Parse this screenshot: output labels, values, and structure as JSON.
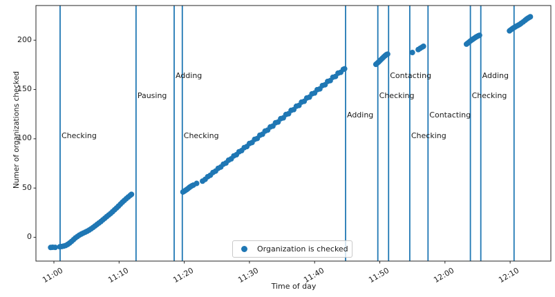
{
  "chart_data": {
    "type": "scatter",
    "title": "",
    "xlabel": "Time of day",
    "ylabel": "Numer of organizations checked",
    "point_color": "#1f77b4",
    "event_line_color": "#1f77b4",
    "grid": false,
    "x_axis": {
      "unit": "minutes after 11:00",
      "tick_minutes": [
        0,
        10,
        20,
        30,
        40,
        50,
        60,
        70
      ],
      "tick_labels": [
        "11:00",
        "11:10",
        "11:20",
        "11:30",
        "11:40",
        "11:50",
        "12:00",
        "12:10"
      ],
      "lim_minutes": [
        -2.8,
        76.3
      ]
    },
    "y_axis": {
      "ticks": [
        0,
        50,
        100,
        150,
        200
      ],
      "tick_labels": [
        "0",
        "50",
        "100",
        "150",
        "200"
      ],
      "lim": [
        -24,
        235
      ]
    },
    "legend": {
      "label": "Organization is checked",
      "position": "lower center"
    },
    "events": [
      {
        "minute": 0.95,
        "time": "11:01",
        "label": "Checking",
        "label_value": 103
      },
      {
        "minute": 12.6,
        "time": "11:13",
        "label": "Pausing",
        "label_value": 143.5
      },
      {
        "minute": 18.45,
        "time": "11:18",
        "label": "Adding",
        "label_value": 164
      },
      {
        "minute": 19.7,
        "time": "11:20",
        "label": "Checking",
        "label_value": 103
      },
      {
        "minute": 44.75,
        "time": "11:45",
        "label": "Adding",
        "label_value": 124
      },
      {
        "minute": 49.7,
        "time": "11:50",
        "label": "Checking",
        "label_value": 143.5
      },
      {
        "minute": 51.35,
        "time": "11:51",
        "label": "Contacting",
        "label_value": 164
      },
      {
        "minute": 54.6,
        "time": "11:55",
        "label": "Checking",
        "label_value": 103
      },
      {
        "minute": 57.4,
        "time": "11:57",
        "label": "Contacting",
        "label_value": 124
      },
      {
        "minute": 63.9,
        "time": "12:04",
        "label": "Checking",
        "label_value": 143.5
      },
      {
        "minute": 65.5,
        "time": "12:06",
        "label": "Adding",
        "label_value": 164
      },
      {
        "minute": 70.6,
        "time": "12:11",
        "label": "",
        "label_value": null
      }
    ],
    "series": [
      {
        "name": "Organization is checked",
        "points": [
          [
            -0.5,
            -10.3
          ],
          [
            -0.2,
            -10.1
          ],
          [
            0.2,
            -10.2
          ],
          [
            0.9,
            -9.6
          ],
          [
            1.2,
            -9.3
          ],
          [
            1.5,
            -8.9
          ],
          [
            1.8,
            -8.3
          ],
          [
            2.1,
            -7.2
          ],
          [
            2.4,
            -5.8
          ],
          [
            2.7,
            -4.2
          ],
          [
            3.0,
            -2.4
          ],
          [
            3.3,
            -0.6
          ],
          [
            3.6,
            0.8
          ],
          [
            3.9,
            2.2
          ],
          [
            4.2,
            3.3
          ],
          [
            4.5,
            4.3
          ],
          [
            4.8,
            5.2
          ],
          [
            5.1,
            6.2
          ],
          [
            5.4,
            7.3
          ],
          [
            5.7,
            8.6
          ],
          [
            6.0,
            10.0
          ],
          [
            6.3,
            11.5
          ],
          [
            6.6,
            13.0
          ],
          [
            6.9,
            14.5
          ],
          [
            7.2,
            16.0
          ],
          [
            7.5,
            17.7
          ],
          [
            7.8,
            19.3
          ],
          [
            8.1,
            21.0
          ],
          [
            8.4,
            22.6
          ],
          [
            8.7,
            24.2
          ],
          [
            9.0,
            26.0
          ],
          [
            9.3,
            27.9
          ],
          [
            9.6,
            29.7
          ],
          [
            9.9,
            31.6
          ],
          [
            10.2,
            33.6
          ],
          [
            10.5,
            35.6
          ],
          [
            10.8,
            37.4
          ],
          [
            11.1,
            39.2
          ],
          [
            11.4,
            40.9
          ],
          [
            11.7,
            42.5
          ],
          [
            11.9,
            43.6
          ],
          [
            19.8,
            46.0
          ],
          [
            20.0,
            46.8
          ],
          [
            20.2,
            47.7
          ],
          [
            20.4,
            48.6
          ],
          [
            20.6,
            49.6
          ],
          [
            20.8,
            50.7
          ],
          [
            21.0,
            51.6
          ],
          [
            21.2,
            52.4
          ],
          [
            21.4,
            53.0
          ],
          [
            21.9,
            54.7
          ],
          [
            22.8,
            57.0
          ],
          [
            23.2,
            58.8
          ],
          [
            23.6,
            61.5
          ],
          [
            24.0,
            63.0
          ],
          [
            24.4,
            65.8
          ],
          [
            24.8,
            67.2
          ],
          [
            25.2,
            70.0
          ],
          [
            25.6,
            71.3
          ],
          [
            26.0,
            74.2
          ],
          [
            26.4,
            75.4
          ],
          [
            26.8,
            78.3
          ],
          [
            27.2,
            79.6
          ],
          [
            27.6,
            82.6
          ],
          [
            28.0,
            83.8
          ],
          [
            28.4,
            86.8
          ],
          [
            28.8,
            88.0
          ],
          [
            29.2,
            91.0
          ],
          [
            29.6,
            92.1
          ],
          [
            30.0,
            95.2
          ],
          [
            30.4,
            96.2
          ],
          [
            30.8,
            99.4
          ],
          [
            31.2,
            100.3
          ],
          [
            31.6,
            103.6
          ],
          [
            32.0,
            104.6
          ],
          [
            32.4,
            107.8
          ],
          [
            32.8,
            108.8
          ],
          [
            33.2,
            112.0
          ],
          [
            33.6,
            112.9
          ],
          [
            34.0,
            116.2
          ],
          [
            34.4,
            117.0
          ],
          [
            34.8,
            120.4
          ],
          [
            35.2,
            121.2
          ],
          [
            35.6,
            124.6
          ],
          [
            36.0,
            125.4
          ],
          [
            36.4,
            128.8
          ],
          [
            36.8,
            129.6
          ],
          [
            37.2,
            133.0
          ],
          [
            37.6,
            133.8
          ],
          [
            38.0,
            137.2
          ],
          [
            38.4,
            138.0
          ],
          [
            38.8,
            141.4
          ],
          [
            39.2,
            142.2
          ],
          [
            39.6,
            145.6
          ],
          [
            40.0,
            146.4
          ],
          [
            40.4,
            149.8
          ],
          [
            40.8,
            150.6
          ],
          [
            41.2,
            154.0
          ],
          [
            41.6,
            154.8
          ],
          [
            42.0,
            158.2
          ],
          [
            42.4,
            159.0
          ],
          [
            42.8,
            162.4
          ],
          [
            43.2,
            163.2
          ],
          [
            43.6,
            166.6
          ],
          [
            44.0,
            167.4
          ],
          [
            44.4,
            170.4
          ],
          [
            44.6,
            171.0
          ],
          [
            49.4,
            175.5
          ],
          [
            49.6,
            176.6
          ],
          [
            49.8,
            177.8
          ],
          [
            50.0,
            179.1
          ],
          [
            50.2,
            180.4
          ],
          [
            50.4,
            181.7
          ],
          [
            50.6,
            183.0
          ],
          [
            50.8,
            184.2
          ],
          [
            51.0,
            185.3
          ],
          [
            51.2,
            185.9
          ],
          [
            55.0,
            187.5
          ],
          [
            55.9,
            190.5
          ],
          [
            56.2,
            191.8
          ],
          [
            56.5,
            193.0
          ],
          [
            56.7,
            193.8
          ],
          [
            63.3,
            196.0
          ],
          [
            63.5,
            197.0
          ],
          [
            63.7,
            198.1
          ],
          [
            63.9,
            199.2
          ],
          [
            64.1,
            200.2
          ],
          [
            64.3,
            201.1
          ],
          [
            64.5,
            202.0
          ],
          [
            64.7,
            202.9
          ],
          [
            64.9,
            203.7
          ],
          [
            65.1,
            204.4
          ],
          [
            65.3,
            205.0
          ],
          [
            69.9,
            209.5
          ],
          [
            70.1,
            210.5
          ],
          [
            70.3,
            211.5
          ],
          [
            70.5,
            212.4
          ],
          [
            70.7,
            213.2
          ],
          [
            70.9,
            214.0
          ],
          [
            71.1,
            214.7
          ],
          [
            71.3,
            215.4
          ],
          [
            71.5,
            216.2
          ],
          [
            71.7,
            217.2
          ],
          [
            72.0,
            218.6
          ],
          [
            72.3,
            220.2
          ],
          [
            72.5,
            221.3
          ],
          [
            72.7,
            222.2
          ],
          [
            72.9,
            223.0
          ],
          [
            73.1,
            223.8
          ]
        ]
      }
    ]
  }
}
